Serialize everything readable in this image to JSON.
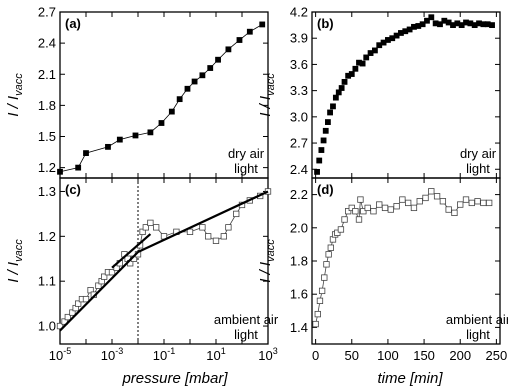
{
  "chart_data": [
    {
      "id": "a",
      "type": "line",
      "panel_label": "(a)",
      "annotation": [
        "dry air",
        "light"
      ],
      "ylabel": "I / I_vacc",
      "xscale": "log",
      "xlim": [
        1e-05,
        1000
      ],
      "ylim": [
        1.1,
        2.7
      ],
      "yticks": [
        1.2,
        1.5,
        1.8,
        2.1,
        2.4,
        2.7
      ],
      "ytick_labels": [
        "1.2",
        "1.5",
        "1.8",
        "2.1",
        "2.4",
        "2.7"
      ],
      "marker": "filled-square",
      "series": [
        {
          "x": [
            1e-05,
            5e-05,
            0.0001,
            0.0007,
            0.002,
            0.008,
            0.03,
            0.08,
            0.2,
            0.4,
            0.8,
            1.5,
            3,
            6,
            12,
            30,
            80,
            200,
            600
          ],
          "y": [
            1.16,
            1.2,
            1.34,
            1.4,
            1.47,
            1.51,
            1.54,
            1.63,
            1.74,
            1.86,
            1.96,
            2.03,
            2.09,
            2.16,
            2.24,
            2.34,
            2.43,
            2.51,
            2.58
          ]
        }
      ]
    },
    {
      "id": "b",
      "type": "scatter",
      "panel_label": "(b)",
      "annotation": [
        "dry air",
        "light"
      ],
      "ylabel": "I / I_vacc",
      "xlim": [
        -5,
        255
      ],
      "ylim": [
        2.3,
        4.2
      ],
      "yticks": [
        2.4,
        2.7,
        3.0,
        3.3,
        3.6,
        3.9,
        4.2
      ],
      "ytick_labels": [
        "2.4",
        "2.7",
        "3.0",
        "3.3",
        "3.6",
        "3.9",
        "4.2"
      ],
      "marker": "filled-square",
      "series": [
        {
          "x": [
            2,
            5,
            8,
            11,
            14,
            17,
            20,
            24,
            28,
            32,
            36,
            40,
            45,
            50,
            55,
            60,
            65,
            70,
            76,
            82,
            88,
            94,
            100,
            106,
            112,
            118,
            124,
            130,
            136,
            142,
            148,
            154,
            160,
            166,
            172,
            178,
            184,
            190,
            196,
            202,
            208,
            214,
            220,
            226,
            232,
            238,
            244
          ],
          "y": [
            2.37,
            2.5,
            2.62,
            2.73,
            2.84,
            2.94,
            3.05,
            3.12,
            3.22,
            3.28,
            3.33,
            3.4,
            3.47,
            3.49,
            3.55,
            3.62,
            3.61,
            3.68,
            3.73,
            3.76,
            3.82,
            3.85,
            3.88,
            3.9,
            3.93,
            3.96,
            3.98,
            4.0,
            4.03,
            4.04,
            4.06,
            4.1,
            4.14,
            4.07,
            4.06,
            4.1,
            4.08,
            4.05,
            4.07,
            4.05,
            4.08,
            4.07,
            4.05,
            4.07,
            4.06,
            4.06,
            4.05
          ]
        }
      ]
    },
    {
      "id": "c",
      "type": "line",
      "panel_label": "(c)",
      "annotation": [
        "ambient air",
        "light"
      ],
      "ylabel": "I / I_vacc",
      "xlabel": "pressure [mbar]",
      "xscale": "log",
      "xlim": [
        1e-05,
        1000
      ],
      "xticks": [
        1e-05,
        0.001,
        0.1,
        10,
        1000
      ],
      "xtick_labels": [
        [
          "10",
          "-5"
        ],
        [
          "10",
          "-3"
        ],
        [
          "10",
          "-1"
        ],
        [
          "10",
          "1"
        ],
        [
          "10",
          "3"
        ]
      ],
      "ylim": [
        0.96,
        1.33
      ],
      "yticks": [
        1.0,
        1.1,
        1.2,
        1.3
      ],
      "ytick_labels": [
        "1.0",
        "1.1",
        "1.2",
        "1.3"
      ],
      "vline_x": 0.01,
      "marker": "open-square",
      "series": [
        {
          "x": [
            1e-05,
            1.5e-05,
            2e-05,
            3e-05,
            4e-05,
            5e-05,
            7e-05,
            0.0001,
            0.00015,
            0.0002,
            0.0003,
            0.0004,
            0.0005,
            0.0007,
            0.001,
            0.0015,
            0.002,
            0.003,
            0.004,
            0.005,
            0.007,
            0.01,
            0.012,
            0.015,
            0.02,
            0.03,
            0.05,
            0.1,
            0.3,
            1,
            3,
            5,
            10,
            20,
            30,
            60,
            100,
            200,
            500,
            1000
          ],
          "y": [
            1.0,
            1.01,
            1.02,
            1.03,
            1.04,
            1.05,
            1.06,
            1.06,
            1.08,
            1.07,
            1.09,
            1.1,
            1.11,
            1.12,
            1.12,
            1.13,
            1.14,
            1.16,
            1.15,
            1.14,
            1.15,
            1.16,
            1.18,
            1.21,
            1.22,
            1.23,
            1.22,
            1.2,
            1.21,
            1.21,
            1.22,
            1.2,
            1.19,
            1.2,
            1.22,
            1.25,
            1.27,
            1.28,
            1.29,
            1.3
          ]
        }
      ],
      "fits": [
        {
          "x": [
            1e-05,
            0.01
          ],
          "y": [
            0.99,
            1.165
          ]
        },
        {
          "x": [
            0.01,
            1000
          ],
          "y": [
            1.165,
            1.3
          ]
        },
        {
          "x": [
            0.001,
            0.03
          ],
          "y": [
            1.13,
            1.205
          ]
        }
      ]
    },
    {
      "id": "d",
      "type": "line",
      "panel_label": "(d)",
      "annotation": [
        "ambient air",
        "light"
      ],
      "ylabel": "I / I_vacc",
      "xlabel": "time [min]",
      "xlim": [
        -5,
        255
      ],
      "xticks": [
        0,
        50,
        100,
        150,
        200,
        250
      ],
      "xtick_labels": [
        "0",
        "50",
        "100",
        "150",
        "200",
        "250"
      ],
      "ylim": [
        1.3,
        2.3
      ],
      "yticks": [
        1.4,
        1.6,
        1.8,
        2.0,
        2.2
      ],
      "ytick_labels": [
        "1.4",
        "1.6",
        "1.8",
        "2.0",
        "2.2"
      ],
      "marker": "open-square",
      "series": [
        {
          "x": [
            0,
            3,
            6,
            9,
            12,
            15,
            18,
            21,
            24,
            27,
            30,
            35,
            40,
            45,
            50,
            55,
            60,
            62,
            66,
            72,
            80,
            88,
            96,
            104,
            112,
            120,
            128,
            136,
            144,
            152,
            160,
            168,
            176,
            184,
            192,
            200,
            208,
            216,
            224,
            232,
            240
          ],
          "y": [
            1.42,
            1.48,
            1.56,
            1.62,
            1.7,
            1.78,
            1.84,
            1.88,
            1.93,
            1.96,
            1.97,
            1.99,
            2.05,
            2.1,
            2.12,
            2.1,
            2.05,
            2.17,
            2.1,
            2.12,
            2.1,
            2.14,
            2.12,
            2.11,
            2.13,
            2.17,
            2.15,
            2.12,
            2.16,
            2.18,
            2.22,
            2.19,
            2.16,
            2.11,
            2.09,
            2.14,
            2.17,
            2.15,
            2.16,
            2.15,
            2.15
          ]
        }
      ]
    }
  ]
}
